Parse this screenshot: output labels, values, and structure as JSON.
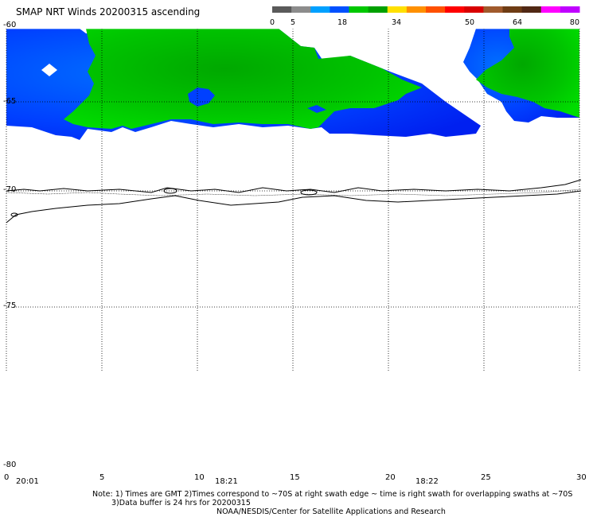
{
  "title": "SMAP NRT Winds 20200315 ascending",
  "colorbar": {
    "ticks": [
      "0",
      "5",
      "18",
      "34",
      "50",
      "64",
      "80"
    ],
    "segments": [
      {
        "color": "#5a5a5a"
      },
      {
        "color": "#8c8c8c"
      },
      {
        "color": "#00a0ff"
      },
      {
        "color": "#0050ff"
      },
      {
        "color": "#00c800"
      },
      {
        "color": "#00a000"
      },
      {
        "color": "#ffe000"
      },
      {
        "color": "#ff9000"
      },
      {
        "color": "#ff5000"
      },
      {
        "color": "#ff0000"
      },
      {
        "color": "#d80000"
      },
      {
        "color": "#a05a2c"
      },
      {
        "color": "#6e3c14"
      },
      {
        "color": "#502814"
      },
      {
        "color": "#ff00ff"
      },
      {
        "color": "#c000ff"
      }
    ]
  },
  "axes": {
    "lat_labels": [
      "-60",
      "-65",
      "-70",
      "-75",
      "-80"
    ],
    "lon_labels": [
      "0",
      "5",
      "10",
      "15",
      "20",
      "25",
      "30"
    ],
    "time_labels": [
      "20:01",
      "18:21",
      "18:22"
    ]
  },
  "swath_colors": {
    "green": "#00d000",
    "blue": "#0030ff",
    "dark_green": "#00a800"
  },
  "notes": {
    "line1": "Note: 1) Times are GMT 2)Times correspond to ~70S at right swath edge ~ time is right swath for overlapping swaths at ~70S",
    "line2": "3)Data buffer is 24 hrs for 20200315",
    "line3": "NOAA/NESDIS/Center for Satellite Applications and Research"
  }
}
